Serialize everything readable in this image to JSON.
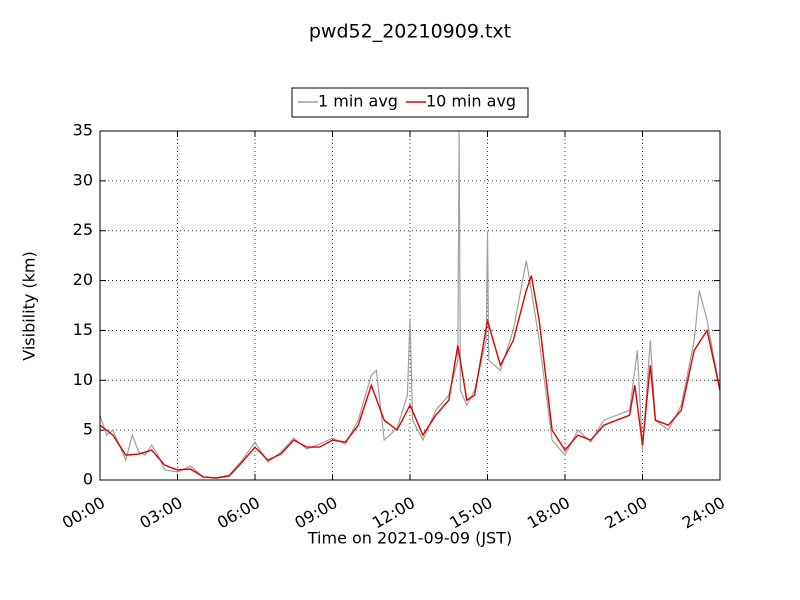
{
  "chart_data": {
    "type": "line",
    "title": "pwd52_20210909.txt",
    "xlabel": "Time on 2021-09-09 (JST)",
    "ylabel": "Visibility (km)",
    "xlim": [
      0,
      24
    ],
    "ylim": [
      0,
      35
    ],
    "xticks": [
      {
        "value": 0,
        "label": "00:00"
      },
      {
        "value": 3,
        "label": "03:00"
      },
      {
        "value": 6,
        "label": "06:00"
      },
      {
        "value": 9,
        "label": "09:00"
      },
      {
        "value": 12,
        "label": "12:00"
      },
      {
        "value": 15,
        "label": "15:00"
      },
      {
        "value": 18,
        "label": "18:00"
      },
      {
        "value": 21,
        "label": "21:00"
      },
      {
        "value": 24,
        "label": "24:00"
      }
    ],
    "yticks": [
      0,
      5,
      10,
      15,
      20,
      25,
      30,
      35
    ],
    "grid": true,
    "legend": "top",
    "series": [
      {
        "name": "1 min avg",
        "color": "#a0a0a0",
        "x": [
          0,
          0.25,
          0.5,
          0.75,
          1,
          1.25,
          1.5,
          1.75,
          2,
          2.25,
          2.5,
          3,
          3.5,
          4,
          4.5,
          5,
          5.5,
          6,
          6.5,
          7,
          7.5,
          8,
          8.5,
          9,
          9.5,
          10,
          10.5,
          10.7,
          11,
          11.5,
          11.9,
          12,
          12.1,
          12.5,
          13,
          13.5,
          13.85,
          13.9,
          13.95,
          14.2,
          14.5,
          14.95,
          15,
          15.05,
          15.5,
          16,
          16.5,
          16.7,
          17,
          17.5,
          18,
          18.5,
          19,
          19.5,
          20,
          20.5,
          20.8,
          21,
          21.3,
          21.5,
          22,
          22.5,
          23,
          23.2,
          23.5,
          24
        ],
        "values": [
          6.5,
          4.5,
          5,
          3.5,
          2,
          4.5,
          2.8,
          2.5,
          3.5,
          2.5,
          1,
          0.8,
          1.4,
          0.3,
          0.2,
          0.5,
          2,
          3.8,
          1.8,
          2.8,
          4.2,
          3.1,
          3.6,
          4.2,
          3.6,
          6,
          10.5,
          11,
          4,
          5.2,
          8.5,
          16.2,
          6,
          4,
          7,
          8.5,
          12,
          35,
          9,
          7.5,
          9,
          14,
          25,
          12,
          11,
          15,
          22,
          19,
          14,
          4,
          2.5,
          5,
          3.8,
          6,
          6.5,
          7,
          13,
          3,
          14,
          6,
          5,
          7.5,
          14,
          19,
          16,
          9
        ]
      },
      {
        "name": "10 min avg",
        "color": "#e00000",
        "x": [
          0,
          0.5,
          1,
          1.5,
          2,
          2.5,
          3,
          3.5,
          4,
          4.5,
          5,
          5.5,
          6,
          6.5,
          7,
          7.5,
          8,
          8.5,
          9,
          9.5,
          10,
          10.5,
          11,
          11.5,
          12,
          12.5,
          13,
          13.5,
          13.85,
          14.2,
          14.5,
          15,
          15.5,
          16,
          16.5,
          16.7,
          17,
          17.5,
          18,
          18.5,
          19,
          19.5,
          20,
          20.5,
          20.7,
          21,
          21.3,
          21.5,
          22,
          22.5,
          23,
          23.5,
          24
        ],
        "values": [
          5.5,
          4.5,
          2.5,
          2.6,
          3,
          1.5,
          1,
          1.1,
          0.3,
          0.2,
          0.4,
          1.8,
          3.3,
          2,
          2.6,
          4,
          3.3,
          3.3,
          4,
          3.8,
          5.5,
          9.5,
          6,
          5,
          7.5,
          4.5,
          6.5,
          8,
          13.5,
          8,
          8.5,
          16,
          11.5,
          14,
          19,
          20.5,
          16,
          5,
          3,
          4.5,
          4,
          5.5,
          6,
          6.5,
          9.5,
          3.5,
          11.5,
          6,
          5.5,
          7,
          13,
          15,
          9
        ]
      }
    ]
  }
}
